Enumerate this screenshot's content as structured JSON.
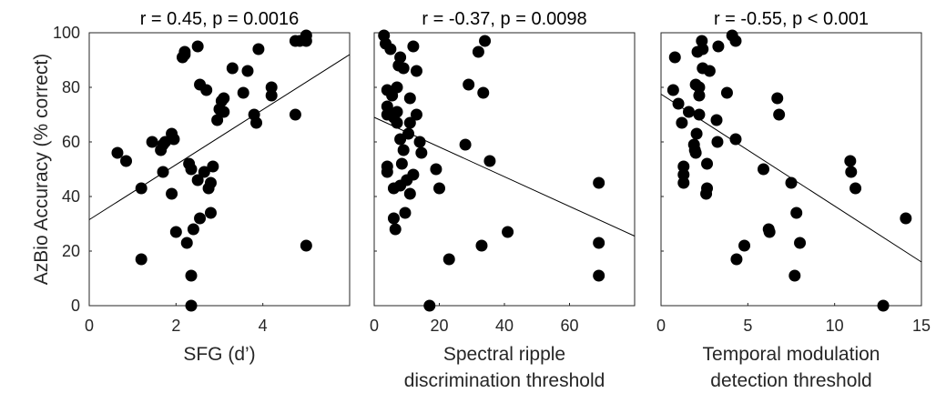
{
  "shared_ylabel": "AzBio Accuracy (% correct)",
  "colors": {
    "marker": "#000000",
    "axis": "#262626",
    "fit_line": "#000000"
  },
  "chart_data": [
    {
      "type": "scatter",
      "title": "r = 0.45, p = 0.0016",
      "xlabel": [
        "SFG (d’)"
      ],
      "ylabel": "AzBio Accuracy (% correct)",
      "xlim": [
        0,
        6
      ],
      "ylim": [
        0,
        100
      ],
      "xticks": [
        0,
        2,
        4
      ],
      "yticks": [
        0,
        20,
        40,
        60,
        80,
        100
      ],
      "fit_line": [
        [
          0,
          31.5
        ],
        [
          6,
          92
        ]
      ],
      "points": [
        [
          0.65,
          56
        ],
        [
          0.85,
          53
        ],
        [
          1.2,
          43
        ],
        [
          1.2,
          17
        ],
        [
          1.45,
          60
        ],
        [
          1.65,
          57
        ],
        [
          1.7,
          59
        ],
        [
          1.7,
          49
        ],
        [
          1.75,
          60
        ],
        [
          1.9,
          63
        ],
        [
          1.9,
          41
        ],
        [
          1.95,
          61
        ],
        [
          2.0,
          27
        ],
        [
          2.15,
          91
        ],
        [
          2.2,
          93
        ],
        [
          2.2,
          92
        ],
        [
          2.25,
          23
        ],
        [
          2.3,
          52
        ],
        [
          2.35,
          50
        ],
        [
          2.35,
          11
        ],
        [
          2.35,
          0
        ],
        [
          2.4,
          28
        ],
        [
          2.5,
          95
        ],
        [
          2.5,
          46
        ],
        [
          2.55,
          32
        ],
        [
          2.55,
          81
        ],
        [
          2.65,
          49
        ],
        [
          2.7,
          79
        ],
        [
          2.75,
          43
        ],
        [
          2.8,
          45
        ],
        [
          2.8,
          34
        ],
        [
          2.85,
          51
        ],
        [
          2.95,
          68
        ],
        [
          3.0,
          72
        ],
        [
          3.05,
          75
        ],
        [
          3.1,
          76
        ],
        [
          3.1,
          71
        ],
        [
          3.3,
          87
        ],
        [
          3.55,
          78
        ],
        [
          3.65,
          86
        ],
        [
          3.8,
          70
        ],
        [
          3.85,
          67
        ],
        [
          3.9,
          94
        ],
        [
          4.2,
          80
        ],
        [
          4.2,
          77
        ],
        [
          4.75,
          97
        ],
        [
          4.75,
          70
        ],
        [
          4.85,
          97
        ],
        [
          5.0,
          99
        ],
        [
          5.0,
          97
        ],
        [
          5.0,
          22
        ]
      ]
    },
    {
      "type": "scatter",
      "title": "r = -0.37, p = 0.0098",
      "xlabel": [
        "Spectral ripple",
        "discrimination threshold"
      ],
      "xlim": [
        0,
        80
      ],
      "ylim": [
        0,
        100
      ],
      "xticks": [
        0,
        20,
        40,
        60
      ],
      "yticks": [
        0,
        20,
        40,
        60,
        80,
        100
      ],
      "fit_line": [
        [
          0,
          69
        ],
        [
          80,
          25.5
        ]
      ],
      "points": [
        [
          3,
          99
        ],
        [
          3.5,
          96
        ],
        [
          4,
          79
        ],
        [
          4,
          73
        ],
        [
          4,
          70
        ],
        [
          4,
          51
        ],
        [
          4,
          49
        ],
        [
          5,
          94
        ],
        [
          5.5,
          77
        ],
        [
          6,
          69
        ],
        [
          6,
          32
        ],
        [
          6,
          43
        ],
        [
          6.5,
          28
        ],
        [
          7,
          71
        ],
        [
          7,
          67
        ],
        [
          7,
          80
        ],
        [
          7.5,
          88
        ],
        [
          8,
          44
        ],
        [
          8,
          61
        ],
        [
          8,
          91
        ],
        [
          8.5,
          52
        ],
        [
          9,
          57
        ],
        [
          9,
          87
        ],
        [
          9.5,
          34
        ],
        [
          10,
          46
        ],
        [
          10.5,
          63
        ],
        [
          11,
          76
        ],
        [
          11,
          67
        ],
        [
          11,
          41
        ],
        [
          12,
          95
        ],
        [
          12,
          48
        ],
        [
          13,
          70
        ],
        [
          13,
          86
        ],
        [
          14,
          60
        ],
        [
          14.5,
          56
        ],
        [
          17,
          0
        ],
        [
          19,
          50
        ],
        [
          20,
          43
        ],
        [
          23,
          17
        ],
        [
          28,
          59
        ],
        [
          29,
          81
        ],
        [
          32,
          93
        ],
        [
          33,
          22
        ],
        [
          33.5,
          78
        ],
        [
          34,
          97
        ],
        [
          35.5,
          53
        ],
        [
          41,
          27
        ],
        [
          69,
          45
        ],
        [
          69,
          23
        ],
        [
          69,
          11
        ]
      ]
    },
    {
      "type": "scatter",
      "title": "r = -0.55, p < 0.001",
      "xlabel": [
        "Temporal modulation",
        "detection threshold"
      ],
      "xlim": [
        0,
        15
      ],
      "ylim": [
        0,
        100
      ],
      "xticks": [
        0,
        5,
        10,
        15
      ],
      "yticks": [
        0,
        20,
        40,
        60,
        80,
        100
      ],
      "fit_line": [
        [
          0,
          77.5
        ],
        [
          15,
          16
        ]
      ],
      "points": [
        [
          0.7,
          79
        ],
        [
          0.8,
          91
        ],
        [
          1.0,
          74
        ],
        [
          1.2,
          67
        ],
        [
          1.3,
          51
        ],
        [
          1.3,
          48
        ],
        [
          1.3,
          45
        ],
        [
          1.6,
          71
        ],
        [
          1.9,
          59
        ],
        [
          1.95,
          57
        ],
        [
          2.0,
          56
        ],
        [
          2.0,
          81
        ],
        [
          2.05,
          63
        ],
        [
          2.1,
          93
        ],
        [
          2.2,
          70
        ],
        [
          2.2,
          77
        ],
        [
          2.2,
          80
        ],
        [
          2.35,
          97
        ],
        [
          2.4,
          87
        ],
        [
          2.4,
          94
        ],
        [
          2.6,
          41
        ],
        [
          2.65,
          43
        ],
        [
          2.65,
          52
        ],
        [
          2.8,
          86
        ],
        [
          3.2,
          68
        ],
        [
          3.25,
          60
        ],
        [
          3.3,
          95
        ],
        [
          3.8,
          78
        ],
        [
          4.1,
          99
        ],
        [
          4.3,
          97
        ],
        [
          4.3,
          61
        ],
        [
          4.35,
          17
        ],
        [
          4.8,
          22
        ],
        [
          5.9,
          50
        ],
        [
          6.2,
          28
        ],
        [
          6.25,
          27
        ],
        [
          6.7,
          76
        ],
        [
          6.8,
          70
        ],
        [
          7.5,
          45
        ],
        [
          7.7,
          11
        ],
        [
          7.8,
          34
        ],
        [
          8.0,
          23
        ],
        [
          10.9,
          53
        ],
        [
          10.95,
          49
        ],
        [
          11.2,
          43
        ],
        [
          12.8,
          0
        ],
        [
          14.1,
          32
        ]
      ]
    }
  ]
}
